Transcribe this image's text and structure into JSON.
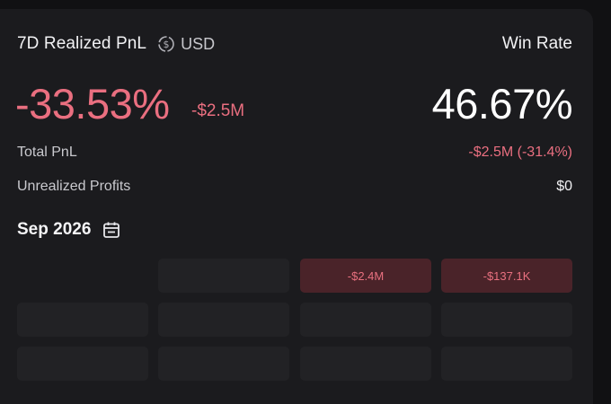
{
  "header": {
    "title": "7D Realized PnL",
    "currency": "USD",
    "win_rate_label": "Win Rate"
  },
  "summary": {
    "realized_pct": "-33.53%",
    "realized_usd": "-$2.5M",
    "win_rate": "46.67%"
  },
  "stats": [
    {
      "label": "Total PnL",
      "value": "-$2.5M (-31.4%)"
    },
    {
      "label": "Unrealized Profits",
      "value": "$0"
    }
  ],
  "calendar": {
    "month": "Sep 2026",
    "cells": [
      "",
      "",
      "-$2.4M",
      "-$137.1K",
      "",
      "",
      "",
      "",
      "",
      "",
      "",
      ""
    ]
  },
  "colors": {
    "negative": "#ea6f80",
    "card_bg": "#1b1b1e",
    "cell_bg": "#222225",
    "loss_cell_bg": "#4a2329"
  },
  "icons": {
    "currency": "currency-swap-icon",
    "calendar": "calendar-icon"
  }
}
